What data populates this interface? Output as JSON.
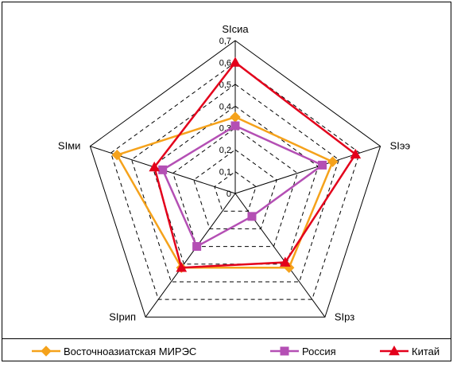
{
  "chart_data": {
    "type": "radar",
    "axes": [
      "SIсиа",
      "SIээ",
      "SIрз",
      "SIрип",
      "SIми"
    ],
    "r_ticks": [
      "0",
      "0,1",
      "0,2",
      "0,3",
      "0,4",
      "0,5",
      "0,6",
      "0,7"
    ],
    "r_range": [
      0,
      0.7
    ],
    "grid": true,
    "legend_position": "bottom",
    "series": [
      {
        "name": "Восточноазиатская МИРЭС",
        "values": [
          0.35,
          0.47,
          0.42,
          0.42,
          0.57
        ],
        "color": "#F5A21B",
        "marker": "diamond"
      },
      {
        "name": "Россия",
        "values": [
          0.31,
          0.42,
          0.13,
          0.3,
          0.35
        ],
        "color": "#B44FB4",
        "marker": "square"
      },
      {
        "name": "Китай",
        "values": [
          0.6,
          0.58,
          0.39,
          0.42,
          0.39
        ],
        "color": "#E3001B",
        "marker": "triangle"
      }
    ]
  }
}
